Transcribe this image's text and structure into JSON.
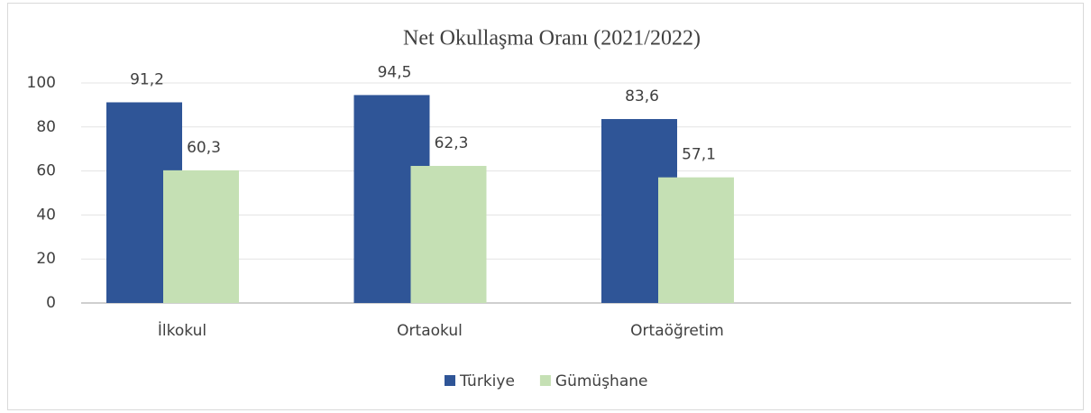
{
  "chart_data": {
    "type": "bar",
    "title": "Net Okullaşma Oranı (2021/2022)",
    "categories": [
      "İlkokul",
      "Ortaokul",
      "Ortaöğretim",
      null
    ],
    "series": [
      {
        "name": "Türkiye",
        "color": "#2f5597",
        "values": [
          91.2,
          94.5,
          83.6,
          null
        ],
        "value_labels": [
          "91,2",
          "94,5",
          "83,6",
          null
        ]
      },
      {
        "name": "Gümüşhane",
        "color": "#c5e0b4",
        "values": [
          60.3,
          62.3,
          57.1,
          null
        ],
        "value_labels": [
          "60,3",
          "62,3",
          "57,1",
          null
        ]
      }
    ],
    "ylim": [
      0,
      100
    ],
    "yticks": [
      0,
      20,
      40,
      60,
      80,
      100
    ],
    "grid": true,
    "legend": "bottom"
  }
}
